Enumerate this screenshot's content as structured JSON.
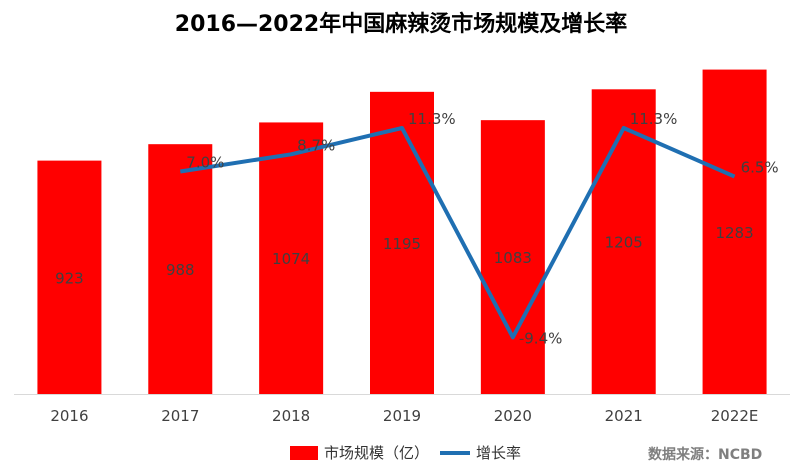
{
  "title": "2016—2022年中国麻辣烫市场规模及增长率",
  "colors": {
    "bar": "#ff0000",
    "line": "#1f6fb2",
    "label": "#404040",
    "axis": "#d9d9d9"
  },
  "legend": {
    "bar_label": "市场规模（亿）",
    "line_label": "增长率"
  },
  "source": "数据来源：NCBD",
  "chart_data": {
    "type": "bar+line",
    "title": "2016—2022年中国麻辣烫市场规模及增长率",
    "categories": [
      "2016",
      "2017",
      "2018",
      "2019",
      "2020",
      "2021",
      "2022E"
    ],
    "series": [
      {
        "name": "市场规模（亿）",
        "type": "bar",
        "values": [
          923,
          988,
          1074,
          1195,
          1083,
          1205,
          1283
        ],
        "labels": [
          "923",
          "988",
          "1074",
          "1195",
          "1083",
          "1205",
          "1283"
        ]
      },
      {
        "name": "增长率",
        "type": "line",
        "values": [
          null,
          7.0,
          8.7,
          11.3,
          -9.4,
          11.3,
          6.5
        ],
        "labels": [
          "",
          "7.0%",
          "8.7%",
          "11.3%",
          "-9.4%",
          "11.3%",
          "6.5%"
        ]
      }
    ],
    "ylim_bar": [
      0,
      1400
    ],
    "ylim_line": [
      -15,
      20
    ]
  }
}
